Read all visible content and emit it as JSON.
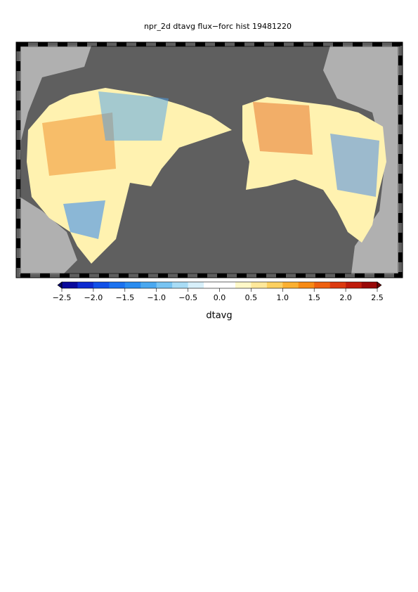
{
  "map": {
    "title": "npr_2d dtavg flux−forc hist 19481220"
  },
  "colorbar": {
    "label": "dtavg",
    "range": [
      -2.5,
      2.5
    ],
    "ticks": [
      {
        "value": -2.5,
        "label": "−2.5"
      },
      {
        "value": -2.0,
        "label": "−2.0"
      },
      {
        "value": -1.5,
        "label": "−1.5"
      },
      {
        "value": -1.0,
        "label": "−1.0"
      },
      {
        "value": -0.5,
        "label": "−0.5"
      },
      {
        "value": 0,
        "label": "0.0"
      },
      0.5,
      {
        "value": 1,
        "label": "1.0"
      },
      1.5,
      {
        "value": 2,
        "label": "2.0"
      },
      2.5
    ],
    "colors": [
      "#0a0a9c",
      "#0d2bd0",
      "#1050e8",
      "#1b72f0",
      "#2a8cf0",
      "#4aa8f0",
      "#78c4f2",
      "#a8dcf5",
      "#d8f0fa",
      "#ffffff",
      "#ffffff",
      "#fff8c8",
      "#fee89a",
      "#fdd060",
      "#fbb030",
      "#f78a14",
      "#ee6010",
      "#dc3a10",
      "#c01c0c",
      "#9a0808"
    ],
    "extend_colors": [
      "#08086a",
      "#6e0606"
    ]
  }
}
